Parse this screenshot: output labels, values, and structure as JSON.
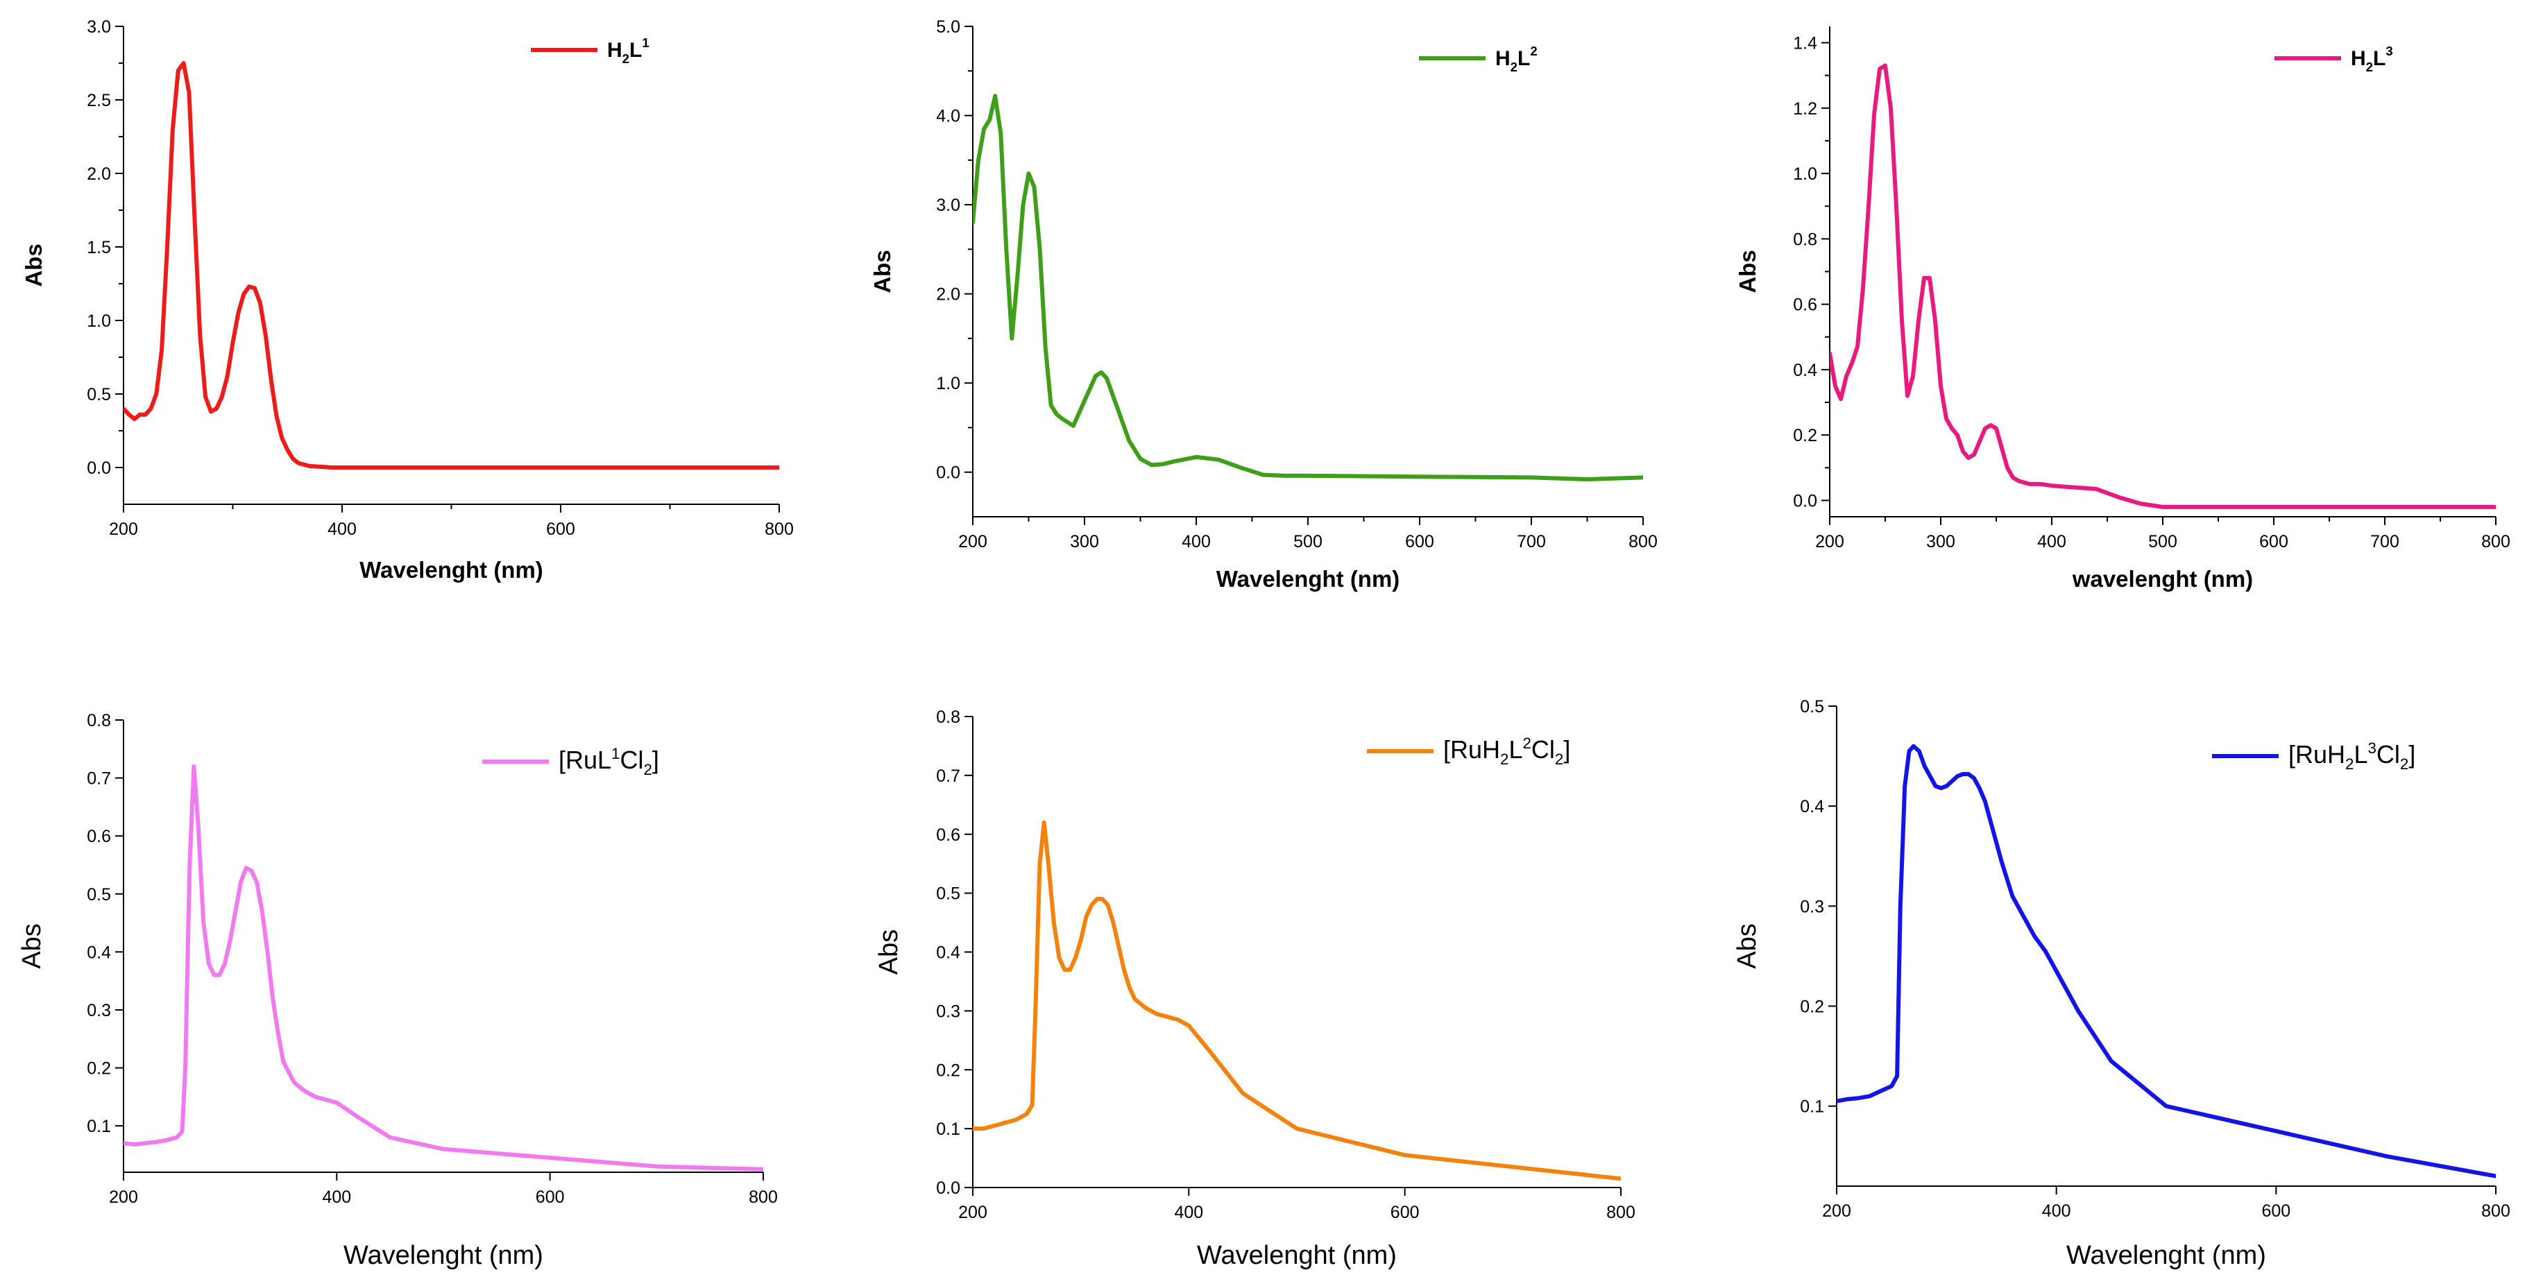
{
  "chart_data": [
    {
      "type": "line",
      "title": "",
      "legend": {
        "main": "H",
        "sub1": "2",
        "mid": "L",
        "sup": "1",
        "tail": "",
        "sub2": "",
        "end": "",
        "position": "top-right"
      },
      "color": "#ee1b1b",
      "xlabel": "Wavelenght (nm)",
      "ylabel": "Abs",
      "xlim": [
        200,
        800
      ],
      "ylim": [
        -0.25,
        3.0
      ],
      "xticks": [
        "200",
        "400",
        "600",
        "800"
      ],
      "yticks": [
        "0.0",
        "0.5",
        "1.0",
        "1.5",
        "2.0",
        "2.5",
        "3.0"
      ],
      "x": [
        200,
        205,
        210,
        215,
        220,
        225,
        230,
        235,
        240,
        245,
        250,
        255,
        260,
        265,
        270,
        275,
        280,
        285,
        290,
        295,
        300,
        305,
        310,
        315,
        320,
        325,
        330,
        335,
        340,
        345,
        350,
        355,
        360,
        370,
        380,
        390,
        400,
        450,
        500,
        600,
        700,
        800
      ],
      "y": [
        0.4,
        0.36,
        0.33,
        0.36,
        0.36,
        0.4,
        0.5,
        0.8,
        1.5,
        2.3,
        2.7,
        2.75,
        2.55,
        1.7,
        0.9,
        0.48,
        0.38,
        0.4,
        0.48,
        0.62,
        0.85,
        1.05,
        1.18,
        1.23,
        1.22,
        1.12,
        0.9,
        0.6,
        0.35,
        0.2,
        0.12,
        0.06,
        0.03,
        0.01,
        0.005,
        0.0,
        0.0,
        0.0,
        0.0,
        0.0,
        0.0,
        0.0
      ]
    },
    {
      "type": "line",
      "title": "",
      "legend": {
        "main": "H",
        "sub1": "2",
        "mid": "L",
        "sup": "2",
        "tail": "",
        "sub2": "",
        "end": "",
        "position": "top-right"
      },
      "color": "#3f9e1a",
      "xlabel": "Wavelenght (nm)",
      "ylabel": "Abs",
      "xlim": [
        200,
        800
      ],
      "ylim": [
        -0.5,
        5.0
      ],
      "xticks": [
        "200",
        "300",
        "400",
        "500",
        "600",
        "700",
        "800"
      ],
      "yticks": [
        "0.0",
        "1.0",
        "2.0",
        "3.0",
        "4.0",
        "5.0"
      ],
      "x": [
        200,
        205,
        210,
        215,
        220,
        225,
        230,
        235,
        240,
        245,
        250,
        255,
        260,
        265,
        270,
        275,
        280,
        290,
        300,
        310,
        315,
        320,
        330,
        340,
        350,
        360,
        370,
        380,
        400,
        420,
        440,
        460,
        480,
        500,
        600,
        700,
        750,
        800
      ],
      "y": [
        2.8,
        3.5,
        3.85,
        3.95,
        4.22,
        3.8,
        2.5,
        1.5,
        2.2,
        3.0,
        3.35,
        3.2,
        2.5,
        1.4,
        0.75,
        0.65,
        0.6,
        0.52,
        0.8,
        1.08,
        1.12,
        1.05,
        0.7,
        0.35,
        0.15,
        0.08,
        0.09,
        0.12,
        0.17,
        0.14,
        0.05,
        -0.03,
        -0.04,
        -0.04,
        -0.05,
        -0.06,
        -0.08,
        -0.06
      ]
    },
    {
      "type": "line",
      "title": "",
      "legend": {
        "main": "H",
        "sub1": "2",
        "mid": "L",
        "sup": "3",
        "tail": "",
        "sub2": "",
        "end": "",
        "position": "top-right"
      },
      "color": "#e8197f",
      "xlabel": "wavelenght (nm)",
      "ylabel": "Abs",
      "xlim": [
        200,
        800
      ],
      "ylim": [
        -0.05,
        1.45
      ],
      "xticks": [
        "200",
        "300",
        "400",
        "500",
        "600",
        "700",
        "800"
      ],
      "yticks": [
        "0.0",
        "0.2",
        "0.4",
        "0.6",
        "0.8",
        "1.0",
        "1.2",
        "1.4"
      ],
      "x": [
        200,
        205,
        210,
        215,
        220,
        225,
        230,
        235,
        240,
        245,
        250,
        255,
        260,
        265,
        270,
        275,
        280,
        285,
        290,
        295,
        300,
        305,
        310,
        315,
        320,
        325,
        330,
        335,
        340,
        345,
        350,
        355,
        360,
        365,
        370,
        380,
        390,
        400,
        420,
        440,
        460,
        480,
        500,
        520,
        600,
        700,
        800
      ],
      "y": [
        0.45,
        0.35,
        0.31,
        0.38,
        0.42,
        0.47,
        0.65,
        0.9,
        1.18,
        1.32,
        1.33,
        1.2,
        0.9,
        0.55,
        0.32,
        0.38,
        0.55,
        0.68,
        0.68,
        0.55,
        0.35,
        0.25,
        0.22,
        0.2,
        0.15,
        0.13,
        0.14,
        0.18,
        0.22,
        0.23,
        0.22,
        0.16,
        0.1,
        0.07,
        0.06,
        0.05,
        0.05,
        0.045,
        0.04,
        0.035,
        0.01,
        -0.01,
        -0.02,
        -0.02,
        -0.02,
        -0.02,
        -0.02
      ]
    },
    {
      "type": "line",
      "title": "",
      "legend": {
        "main": "[RuL",
        "sub1": "",
        "mid": "",
        "sup": "1",
        "tail": "Cl",
        "sub2": "2",
        "end": "]",
        "position": "top-right"
      },
      "color": "#f27af0",
      "xlabel": "Wavelenght (nm)",
      "ylabel": "Abs",
      "xlim": [
        200,
        800
      ],
      "ylim": [
        0.02,
        0.8
      ],
      "xticks": [
        "200",
        "400",
        "600",
        "800"
      ],
      "yticks": [
        "0.1",
        "0.2",
        "0.3",
        "0.4",
        "0.5",
        "0.6",
        "0.7",
        "0.8"
      ],
      "x": [
        200,
        210,
        220,
        230,
        240,
        250,
        255,
        258,
        262,
        266,
        270,
        275,
        280,
        285,
        290,
        295,
        300,
        305,
        310,
        315,
        320,
        325,
        330,
        335,
        340,
        345,
        350,
        360,
        370,
        380,
        390,
        400,
        420,
        450,
        500,
        600,
        700,
        800
      ],
      "y": [
        0.07,
        0.068,
        0.07,
        0.072,
        0.075,
        0.08,
        0.09,
        0.2,
        0.55,
        0.72,
        0.62,
        0.45,
        0.38,
        0.36,
        0.36,
        0.38,
        0.42,
        0.47,
        0.52,
        0.545,
        0.54,
        0.52,
        0.47,
        0.4,
        0.32,
        0.26,
        0.21,
        0.175,
        0.16,
        0.15,
        0.145,
        0.14,
        0.115,
        0.08,
        0.06,
        0.045,
        0.03,
        0.025
      ]
    },
    {
      "type": "line",
      "title": "",
      "legend": {
        "main": "[RuH",
        "sub1": "2",
        "mid": "L",
        "sup": "2",
        "tail": "Cl",
        "sub2": "2",
        "end": "]",
        "position": "top-right"
      },
      "color": "#f5820d",
      "xlabel": "Wavelenght (nm)",
      "ylabel": "Abs",
      "xlim": [
        200,
        800
      ],
      "ylim": [
        0.0,
        0.8
      ],
      "xticks": [
        "200",
        "400",
        "600",
        "800"
      ],
      "yticks": [
        "0.0",
        "0.1",
        "0.2",
        "0.3",
        "0.4",
        "0.5",
        "0.6",
        "0.7",
        "0.8"
      ],
      "x": [
        200,
        210,
        220,
        230,
        240,
        250,
        255,
        258,
        262,
        266,
        270,
        275,
        280,
        285,
        290,
        295,
        300,
        305,
        310,
        315,
        320,
        325,
        330,
        335,
        340,
        345,
        350,
        360,
        370,
        380,
        390,
        400,
        420,
        450,
        500,
        600,
        700,
        800
      ],
      "y": [
        0.1,
        0.1,
        0.105,
        0.11,
        0.115,
        0.125,
        0.14,
        0.3,
        0.55,
        0.62,
        0.55,
        0.45,
        0.39,
        0.37,
        0.37,
        0.39,
        0.42,
        0.46,
        0.48,
        0.49,
        0.49,
        0.48,
        0.45,
        0.41,
        0.37,
        0.34,
        0.32,
        0.305,
        0.295,
        0.29,
        0.285,
        0.275,
        0.23,
        0.16,
        0.1,
        0.055,
        0.035,
        0.015
      ]
    },
    {
      "type": "line",
      "title": "",
      "legend": {
        "main": "[RuH",
        "sub1": "2",
        "mid": "L",
        "sup": "3",
        "tail": "Cl",
        "sub2": "2",
        "end": "]",
        "position": "top-right"
      },
      "color": "#1414e6",
      "xlabel": "Wavelenght (nm)",
      "ylabel": "Abs",
      "xlim": [
        200,
        800
      ],
      "ylim": [
        0.02,
        0.5
      ],
      "xticks": [
        "200",
        "400",
        "600",
        "800"
      ],
      "yticks": [
        "0.1",
        "0.2",
        "0.3",
        "0.4",
        "0.5"
      ],
      "x": [
        200,
        210,
        220,
        230,
        240,
        250,
        255,
        258,
        262,
        266,
        270,
        275,
        280,
        285,
        290,
        295,
        300,
        305,
        310,
        315,
        320,
        325,
        330,
        335,
        340,
        345,
        350,
        360,
        370,
        380,
        390,
        400,
        420,
        450,
        500,
        600,
        700,
        800
      ],
      "y": [
        0.105,
        0.107,
        0.108,
        0.11,
        0.115,
        0.12,
        0.13,
        0.3,
        0.42,
        0.455,
        0.46,
        0.455,
        0.44,
        0.43,
        0.42,
        0.418,
        0.42,
        0.425,
        0.43,
        0.432,
        0.432,
        0.428,
        0.418,
        0.405,
        0.385,
        0.365,
        0.345,
        0.31,
        0.29,
        0.27,
        0.255,
        0.235,
        0.195,
        0.145,
        0.1,
        0.075,
        0.05,
        0.03
      ]
    }
  ]
}
